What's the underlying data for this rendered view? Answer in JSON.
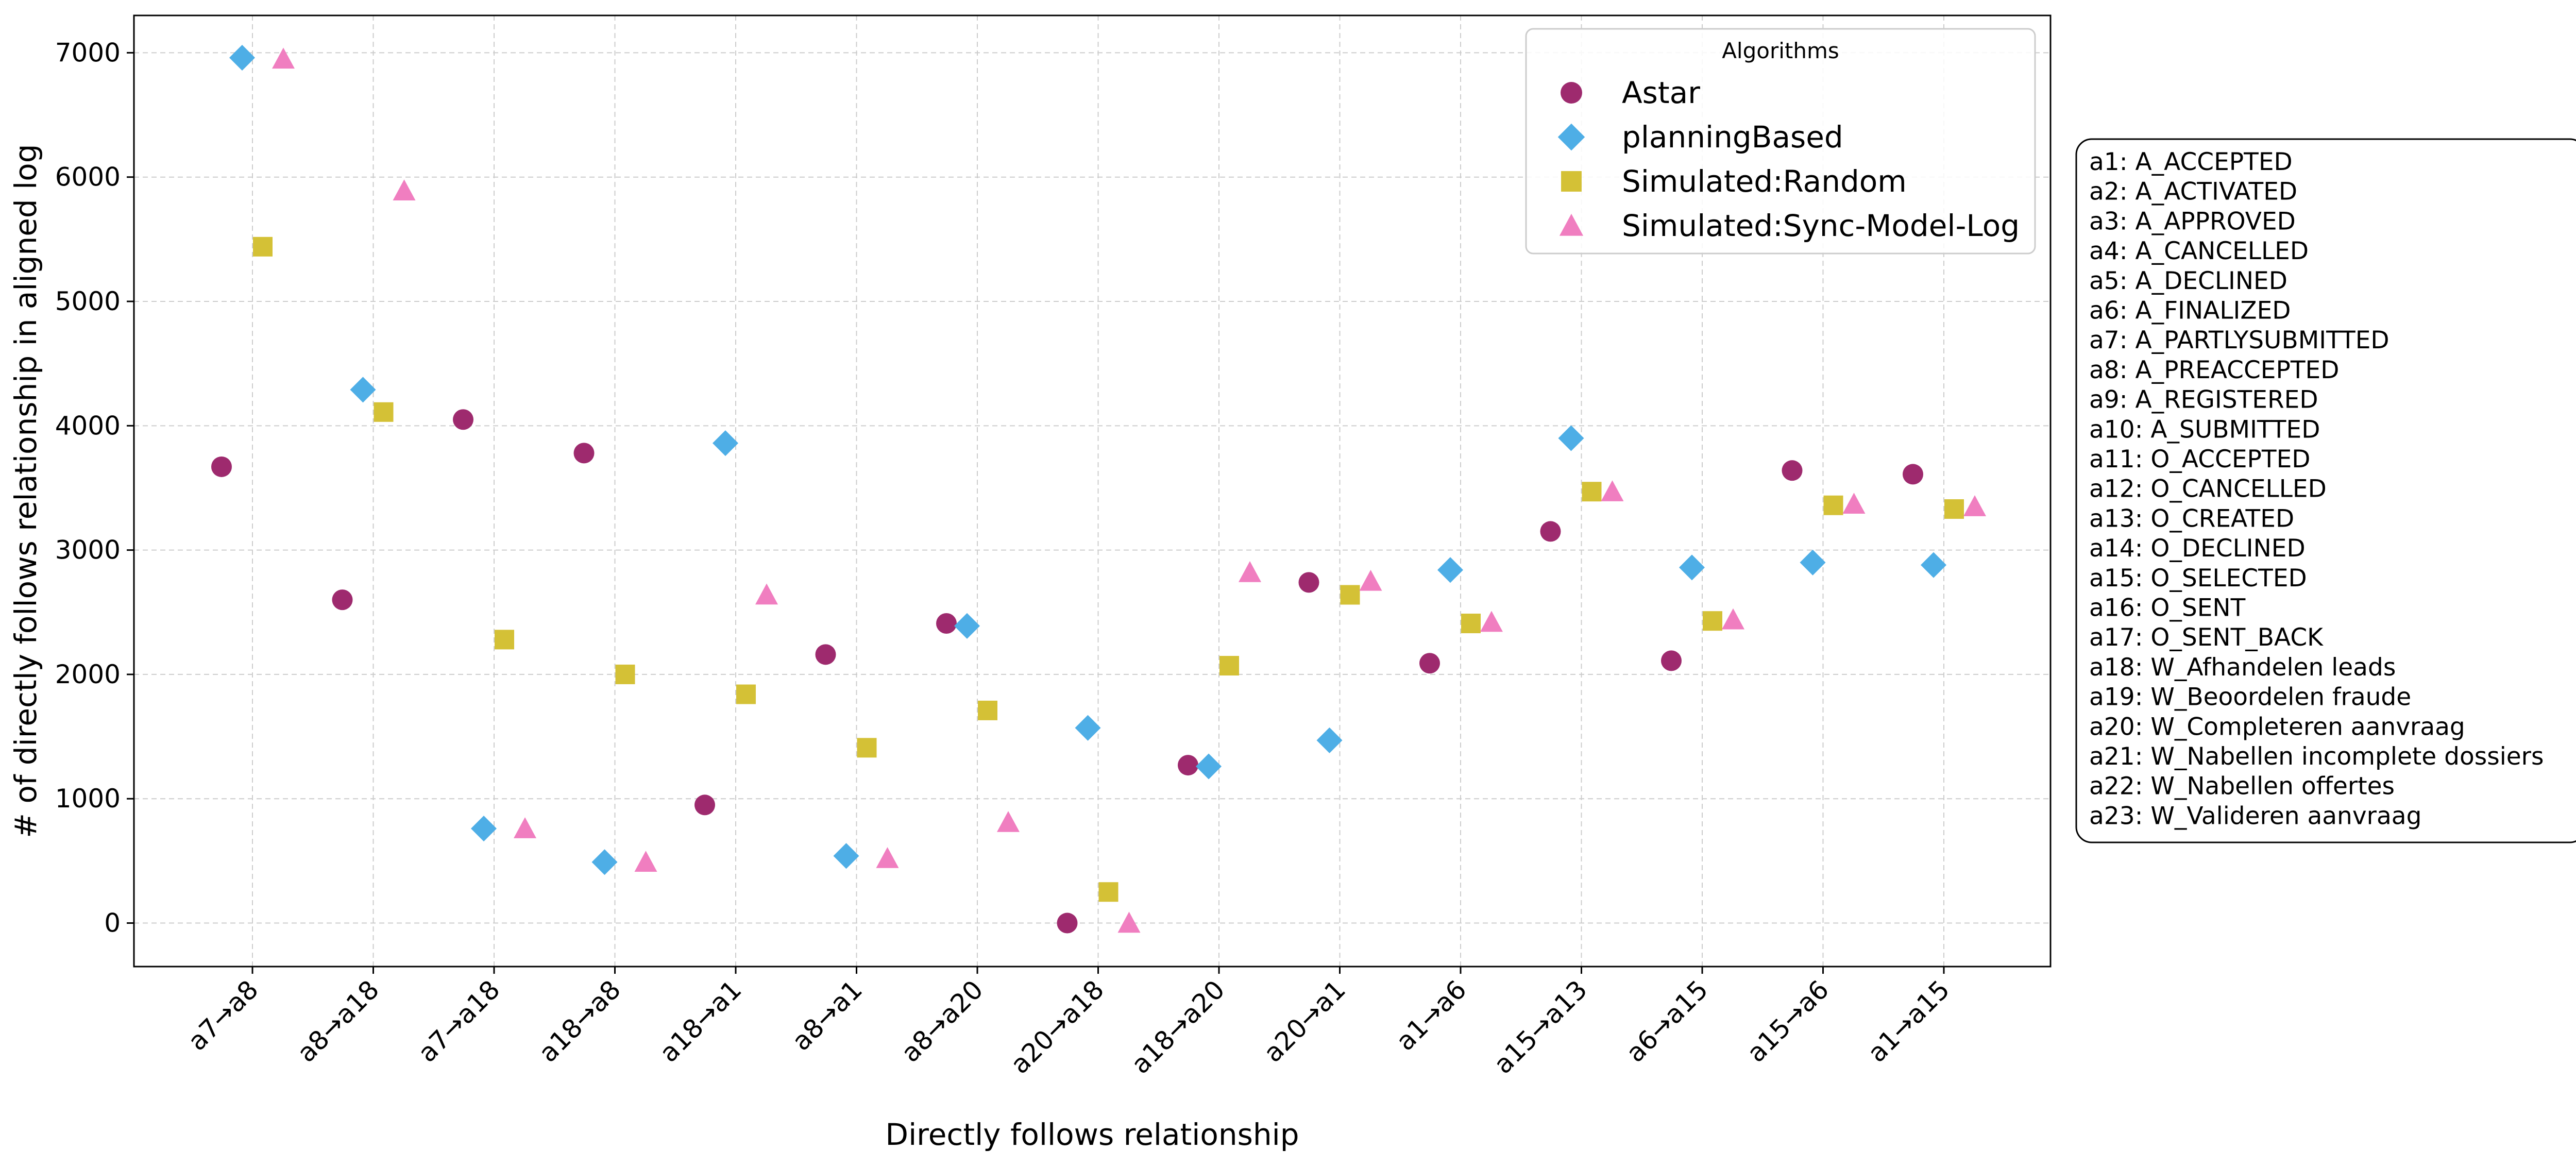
{
  "chart_data": {
    "type": "scatter",
    "xlabel": "Directly follows relationship",
    "ylabel": "# of directly follows relationship in aligned log",
    "ylim": [
      -350,
      7300
    ],
    "yticks": [
      0,
      1000,
      2000,
      3000,
      4000,
      5000,
      6000,
      7000
    ],
    "grid": true,
    "legend": {
      "title": "Algorithms",
      "placement": "top-right"
    },
    "categories": [
      "a7→a8",
      "a8→a18",
      "a7→a18",
      "a18→a8",
      "a18→a1",
      "a8→a1",
      "a8→a20",
      "a20→a18",
      "a18→a20",
      "a20→a1",
      "a1→a6",
      "a15→a13",
      "a6→a15",
      "a15→a6",
      "a1→a15"
    ],
    "series": [
      {
        "name": "Astar",
        "marker": "circle",
        "color": "#9e2a6e",
        "values": [
          3670,
          2600,
          4050,
          3780,
          950,
          2160,
          2410,
          0,
          1270,
          2740,
          2090,
          3150,
          2110,
          3640,
          3610
        ]
      },
      {
        "name": "planningBased",
        "marker": "diamond",
        "color": "#4eaee6",
        "values": [
          6960,
          4290,
          760,
          490,
          3860,
          540,
          2390,
          1570,
          1260,
          1470,
          2840,
          3900,
          2860,
          2900,
          2880
        ]
      },
      {
        "name": "Simulated:Random",
        "marker": "square",
        "color": "#d4c136",
        "values": [
          5440,
          4110,
          2280,
          2000,
          1840,
          1410,
          1710,
          250,
          2070,
          2640,
          2410,
          3470,
          2430,
          3360,
          3330
        ]
      },
      {
        "name": "Simulated:Sync-Model-Log",
        "marker": "triangle",
        "color": "#f07ec0",
        "values": [
          6950,
          5890,
          760,
          490,
          2640,
          520,
          810,
          0,
          2820,
          2750,
          2420,
          3470,
          2440,
          3370,
          3350
        ]
      }
    ],
    "activity_key": [
      "a1: A_ACCEPTED",
      "a2: A_ACTIVATED",
      "a3: A_APPROVED",
      "a4: A_CANCELLED",
      "a5: A_DECLINED",
      "a6: A_FINALIZED",
      "a7: A_PARTLYSUBMITTED",
      "a8: A_PREACCEPTED",
      "a9: A_REGISTERED",
      "a10: A_SUBMITTED",
      "a11: O_ACCEPTED",
      "a12: O_CANCELLED",
      "a13: O_CREATED",
      "a14: O_DECLINED",
      "a15: O_SELECTED",
      "a16: O_SENT",
      "a17: O_SENT_BACK",
      "a18: W_Afhandelen leads",
      "a19: W_Beoordelen fraude",
      "a20: W_Completeren aanvraag",
      "a21: W_Nabellen incomplete dossiers",
      "a22: W_Nabellen offertes",
      "a23: W_Valideren aanvraag"
    ]
  }
}
